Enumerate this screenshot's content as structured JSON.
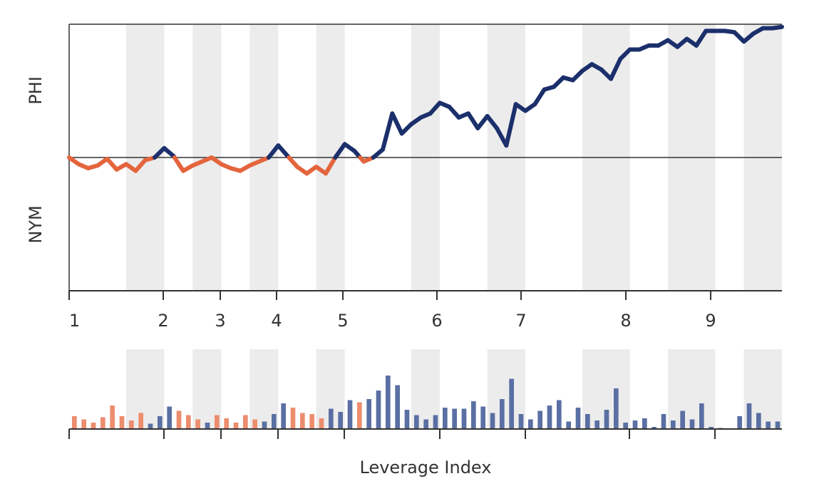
{
  "chart_data": {
    "type": "line",
    "top_label": "PHI",
    "bottom_label": "NYM",
    "xlabel": "Leverage Index",
    "x_ticks": [
      "1",
      "2",
      "3",
      "4",
      "5",
      "6",
      "7",
      "8",
      "9"
    ],
    "colors": {
      "above": "#1b2f6b",
      "below": "#e4653d",
      "bar_above": "#5a6fa3",
      "bar_below": "#ec8d6e",
      "band": "#ececec",
      "axis": "#333333"
    },
    "ylim": [
      -1,
      1
    ],
    "xlim": [
      0,
      75
    ],
    "baseline": 0,
    "bands": [
      [
        6,
        10
      ],
      [
        13,
        16
      ],
      [
        19,
        22
      ],
      [
        26,
        29
      ],
      [
        36,
        39
      ],
      [
        44,
        48
      ],
      [
        54,
        59
      ],
      [
        63,
        68
      ],
      [
        71,
        75
      ]
    ],
    "values": [
      0.0,
      -0.05,
      -0.08,
      -0.06,
      -0.01,
      -0.09,
      -0.05,
      -0.1,
      -0.02,
      0.0,
      0.07,
      0.01,
      -0.1,
      -0.06,
      -0.03,
      0.0,
      -0.05,
      -0.08,
      -0.1,
      -0.06,
      -0.03,
      0.0,
      0.09,
      0.01,
      -0.07,
      -0.12,
      -0.07,
      -0.12,
      0.0,
      0.1,
      0.05,
      -0.03,
      0.0,
      0.06,
      0.33,
      0.18,
      0.25,
      0.3,
      0.33,
      0.41,
      0.38,
      0.3,
      0.33,
      0.22,
      0.31,
      0.22,
      0.09,
      0.4,
      0.35,
      0.4,
      0.51,
      0.53,
      0.6,
      0.58,
      0.65,
      0.7,
      0.66,
      0.59,
      0.74,
      0.81,
      0.81,
      0.84,
      0.84,
      0.88,
      0.83,
      0.89,
      0.84,
      0.95,
      0.95,
      0.95,
      0.94,
      0.87,
      0.93,
      0.97,
      0.97,
      0.98
    ],
    "bar_values": [
      0.12,
      0.09,
      0.06,
      0.11,
      0.22,
      0.12,
      0.08,
      0.15,
      0.05,
      0.12,
      0.21,
      0.17,
      0.13,
      0.09,
      0.06,
      0.13,
      0.1,
      0.06,
      0.13,
      0.09,
      0.07,
      0.14,
      0.24,
      0.2,
      0.15,
      0.14,
      0.1,
      0.19,
      0.16,
      0.27,
      0.25,
      0.28,
      0.36,
      0.5,
      0.41,
      0.18,
      0.13,
      0.09,
      0.13,
      0.2,
      0.19,
      0.19,
      0.26,
      0.21,
      0.15,
      0.28,
      0.47,
      0.14,
      0.09,
      0.17,
      0.22,
      0.27,
      0.07,
      0.2,
      0.14,
      0.08,
      0.18,
      0.38,
      0.06,
      0.08,
      0.1,
      0.02,
      0.14,
      0.08,
      0.17,
      0.09,
      0.24,
      0.02,
      0.01,
      0.0,
      0.12,
      0.24,
      0.15,
      0.07,
      0.07
    ]
  }
}
